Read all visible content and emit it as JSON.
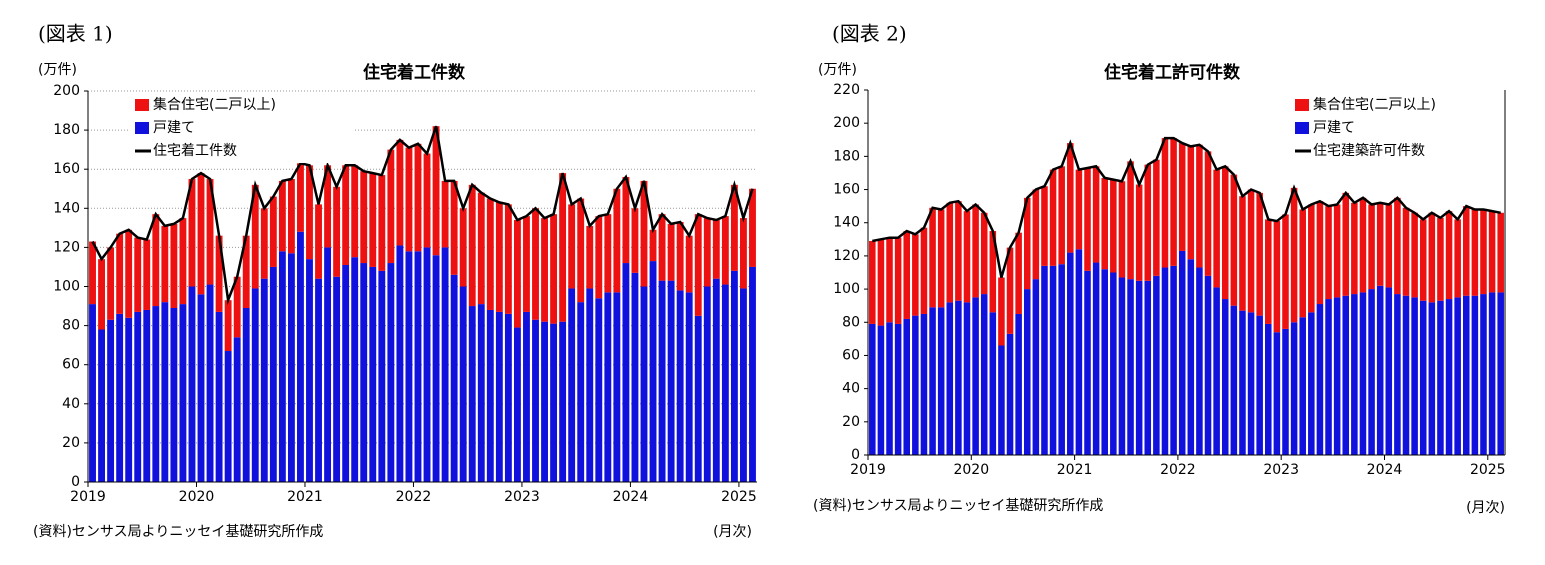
{
  "chart_data": [
    {
      "type": "combo",
      "figure_label": "(図表 1)",
      "title": "住宅着工件数",
      "unit_label": "(万件)",
      "source": "(資料)センサス局よりニッセイ基礎研究所作成",
      "x_unit": "(月次)",
      "categories": [
        "2019",
        null,
        null,
        null,
        null,
        null,
        null,
        null,
        null,
        null,
        null,
        null,
        "2020",
        null,
        null,
        null,
        null,
        null,
        null,
        null,
        null,
        null,
        null,
        null,
        "2021",
        null,
        null,
        null,
        null,
        null,
        null,
        null,
        null,
        null,
        null,
        null,
        "2022",
        null,
        null,
        null,
        null,
        null,
        null,
        null,
        null,
        null,
        null,
        null,
        "2023",
        null,
        null,
        null,
        null,
        null,
        null,
        null,
        null,
        null,
        null,
        null,
        "2024",
        null,
        null,
        null,
        null,
        null,
        null,
        null,
        null,
        null,
        null,
        null,
        "2025",
        null
      ],
      "ylim": [
        0,
        200
      ],
      "yticks": [
        0,
        20,
        40,
        60,
        80,
        100,
        120,
        140,
        160,
        180,
        200
      ],
      "grid": true,
      "legend": "upper left",
      "series": [
        {
          "name": "集合住宅(二戸以上)",
          "color": "#ee1111",
          "mark": "bar",
          "values": [
            32,
            36,
            37,
            41,
            45,
            38,
            36,
            47,
            39,
            43,
            44,
            55,
            62,
            54,
            39,
            26,
            31,
            37,
            53,
            36,
            36,
            36,
            38,
            35,
            48,
            38,
            42,
            46,
            51,
            47,
            47,
            48,
            49,
            58,
            54,
            53,
            55,
            48,
            66,
            34,
            48,
            40,
            62,
            57,
            57,
            56,
            56,
            55,
            49,
            57,
            53,
            56,
            76,
            43,
            53,
            32,
            42,
            40,
            53,
            44,
            33,
            54,
            16,
            34,
            29,
            35,
            29,
            52,
            35,
            30,
            35,
            44,
            36,
            40
          ]
        },
        {
          "name": "戸建て",
          "color": "#1111dd",
          "mark": "bar",
          "values": [
            91,
            78,
            83,
            86,
            84,
            87,
            88,
            90,
            92,
            89,
            91,
            100,
            96,
            101,
            87,
            67,
            74,
            89,
            99,
            104,
            110,
            118,
            117,
            128,
            114,
            104,
            120,
            105,
            111,
            115,
            112,
            110,
            108,
            112,
            121,
            118,
            118,
            120,
            116,
            120,
            106,
            100,
            90,
            91,
            88,
            87,
            86,
            79,
            87,
            83,
            82,
            81,
            82,
            99,
            92,
            99,
            94,
            97,
            97,
            112,
            107,
            100,
            113,
            103,
            103,
            98,
            97,
            85,
            100,
            104,
            101,
            108,
            99,
            110
          ]
        },
        {
          "name": "住宅着工件数",
          "color": "#000000",
          "mark": "line",
          "values": [
            123,
            114,
            120,
            127,
            129,
            125,
            124,
            137,
            131,
            132,
            135,
            155,
            158,
            155,
            126,
            93,
            105,
            126,
            152,
            140,
            146,
            154,
            155,
            163,
            162,
            142,
            162,
            151,
            162,
            162,
            159,
            158,
            157,
            170,
            175,
            171,
            173,
            168,
            182,
            154,
            154,
            140,
            152,
            148,
            145,
            143,
            142,
            134,
            136,
            140,
            135,
            137,
            158,
            142,
            145,
            131,
            136,
            137,
            150,
            156,
            140,
            154,
            129,
            137,
            132,
            133,
            126,
            137,
            135,
            134,
            136,
            152,
            135,
            150
          ]
        }
      ]
    },
    {
      "type": "combo",
      "figure_label": "(図表 2)",
      "title": "住宅着工許可件数",
      "unit_label": "(万件)",
      "source": "(資料)センサス局よりニッセイ基礎研究所作成",
      "x_unit": "(月次)",
      "categories": [
        "2019",
        null,
        null,
        null,
        null,
        null,
        null,
        null,
        null,
        null,
        null,
        null,
        "2020",
        null,
        null,
        null,
        null,
        null,
        null,
        null,
        null,
        null,
        null,
        null,
        "2021",
        null,
        null,
        null,
        null,
        null,
        null,
        null,
        null,
        null,
        null,
        null,
        "2022",
        null,
        null,
        null,
        null,
        null,
        null,
        null,
        null,
        null,
        null,
        null,
        "2023",
        null,
        null,
        null,
        null,
        null,
        null,
        null,
        null,
        null,
        null,
        null,
        "2024",
        null,
        null,
        null,
        null,
        null,
        null,
        null,
        null,
        null,
        null,
        null,
        "2025",
        null
      ],
      "ylim": [
        0,
        220
      ],
      "yticks": [
        0,
        20,
        40,
        60,
        80,
        100,
        120,
        140,
        160,
        180,
        200,
        220
      ],
      "grid": false,
      "legend": "upper right",
      "series": [
        {
          "name": "集合住宅(二戸以上)",
          "color": "#ee1111",
          "mark": "bar",
          "values": [
            50,
            52,
            51,
            52,
            53,
            49,
            52,
            60,
            59,
            60,
            60,
            55,
            56,
            49,
            49,
            41,
            52,
            49,
            55,
            54,
            48,
            58,
            59,
            66,
            48,
            62,
            58,
            55,
            56,
            58,
            71,
            58,
            70,
            70,
            78,
            77,
            65,
            68,
            74,
            75,
            71,
            80,
            79,
            69,
            74,
            74,
            63,
            67,
            69,
            81,
            65,
            65,
            62,
            56,
            56,
            62,
            55,
            57,
            51,
            50,
            50,
            58,
            53,
            51,
            49,
            54,
            50,
            53,
            47,
            54,
            52,
            51,
            49,
            48
          ]
        },
        {
          "name": "戸建て",
          "color": "#1111dd",
          "mark": "bar",
          "values": [
            79,
            78,
            80,
            79,
            82,
            84,
            85,
            89,
            89,
            92,
            93,
            92,
            95,
            97,
            86,
            66,
            73,
            85,
            100,
            106,
            114,
            114,
            115,
            122,
            124,
            111,
            116,
            112,
            110,
            107,
            106,
            105,
            105,
            108,
            113,
            114,
            123,
            118,
            113,
            108,
            101,
            94,
            90,
            87,
            86,
            84,
            79,
            74,
            76,
            80,
            83,
            86,
            91,
            94,
            95,
            96,
            97,
            98,
            100,
            102,
            101,
            97,
            96,
            95,
            93,
            92,
            93,
            94,
            95,
            96,
            96,
            97,
            98,
            98
          ]
        },
        {
          "name": "住宅建築許可件数",
          "color": "#000000",
          "mark": "line",
          "values": [
            129,
            130,
            131,
            131,
            135,
            133,
            137,
            149,
            148,
            152,
            153,
            147,
            151,
            146,
            135,
            107,
            125,
            134,
            155,
            160,
            162,
            172,
            174,
            188,
            172,
            173,
            174,
            167,
            166,
            165,
            177,
            163,
            175,
            178,
            191,
            191,
            188,
            186,
            187,
            183,
            172,
            174,
            169,
            156,
            160,
            158,
            142,
            141,
            145,
            161,
            148,
            151,
            153,
            150,
            151,
            158,
            152,
            155,
            151,
            152,
            151,
            155,
            149,
            146,
            142,
            146,
            143,
            147,
            142,
            150,
            148,
            148,
            147,
            146
          ]
        }
      ]
    }
  ]
}
